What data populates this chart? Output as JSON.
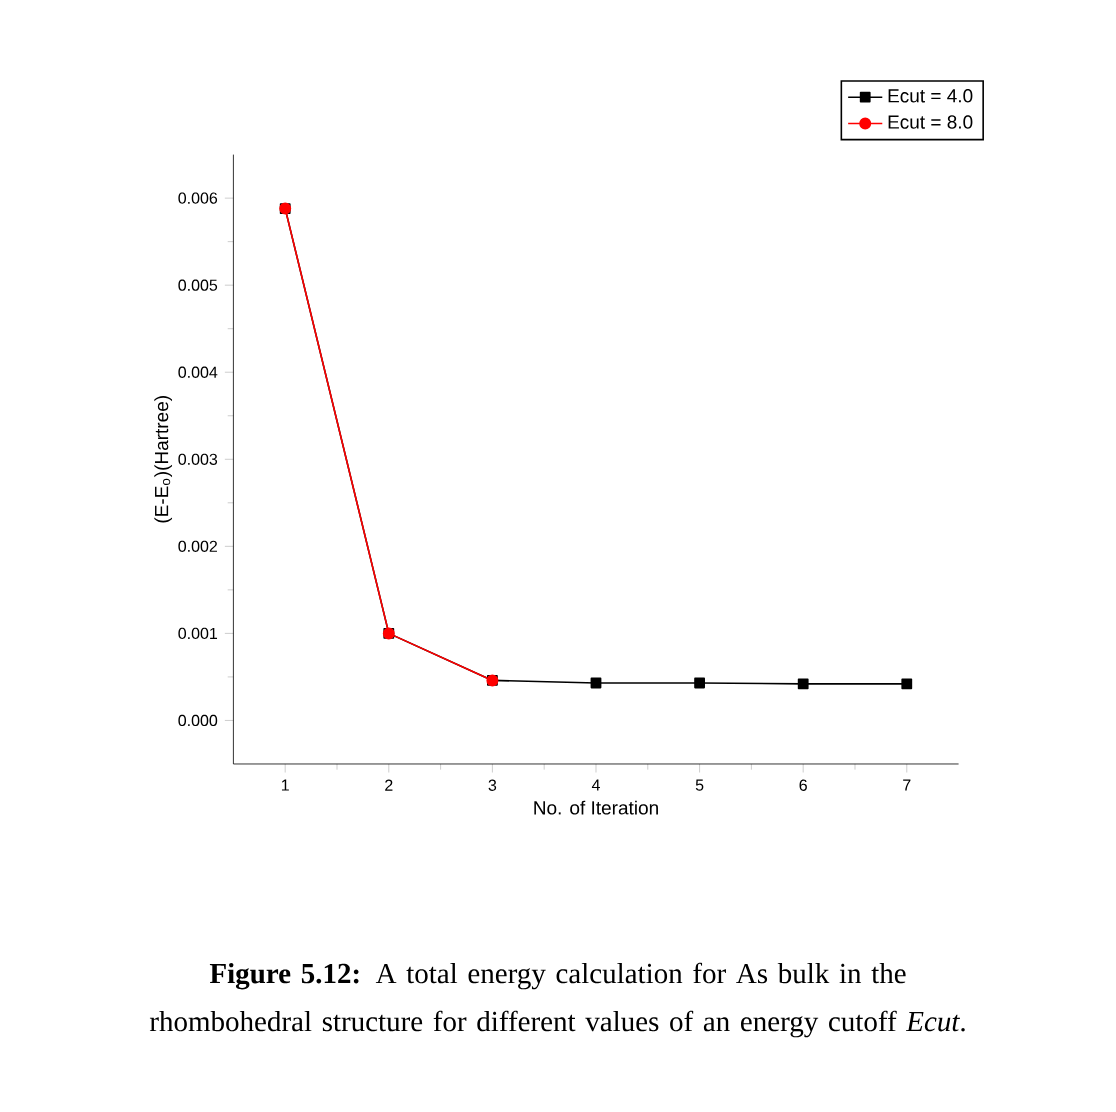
{
  "chart_data": {
    "type": "line",
    "xlabel": "No. of Iteration",
    "ylabel": "(E-E$_{o}$)(Hartree)",
    "x": [
      1,
      2,
      3,
      4,
      5,
      6,
      7
    ],
    "series": [
      {
        "name": "Ecut = 4.0",
        "color": "#000000",
        "marker": "square",
        "values": [
          0.00588,
          0.001,
          0.00046,
          0.00043,
          0.00043,
          0.00042,
          0.00042
        ]
      },
      {
        "name": "Ecut = 8.0",
        "color": "#ff0000",
        "marker": "circle",
        "values": [
          0.00588,
          0.001,
          0.00046,
          null,
          null,
          null,
          null
        ]
      }
    ],
    "xlim": [
      0.5,
      7.5
    ],
    "ylim": [
      -0.0005,
      0.0065
    ],
    "xticks": [
      1,
      2,
      3,
      4,
      5,
      6,
      7
    ],
    "yticks": [
      {
        "value": 0,
        "label": "0.000"
      },
      {
        "value": 0.001,
        "label": "0.001"
      },
      {
        "value": 0.002,
        "label": "0.002"
      },
      {
        "value": 0.003,
        "label": "0.003"
      },
      {
        "value": 0.004,
        "label": "0.004"
      },
      {
        "value": 0.005,
        "label": "0.005"
      },
      {
        "value": 0.006,
        "label": "0.006"
      }
    ],
    "legend": "top right",
    "grid": false,
    "line_style": "solid",
    "annotations": [
      "**Figure 5.12:** A total energy calculation for As bulk in the rhombohedral structure for different values of an energy cutoff *Ecut*."
    ]
  }
}
